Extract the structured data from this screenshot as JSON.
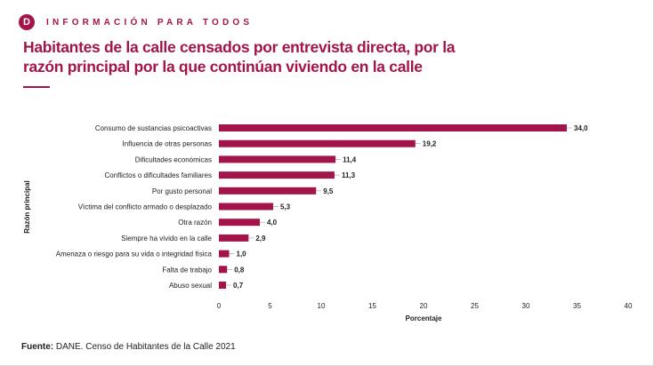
{
  "header": {
    "logo_letter": "D",
    "brand": "INFORMACIÓN PARA TODOS",
    "title": "Habitantes de la calle censados por entrevista directa, por la razón principal por la que continúan viviendo en la calle"
  },
  "footer": {
    "source_label": "Fuente:",
    "source_text": "DANE. Censo de Habitantes de la Calle 2021"
  },
  "colors": {
    "accent": "#a3154a",
    "bar": "#a3154a"
  },
  "chart_data": {
    "type": "bar",
    "orientation": "horizontal",
    "title": "",
    "xlabel": "Porcentaje",
    "ylabel": "Razón principal",
    "xlim": [
      0,
      40
    ],
    "xticks": [
      0,
      5,
      10,
      15,
      20,
      25,
      30,
      35,
      40
    ],
    "categories": [
      "Consumo de sustancias psicoactivas",
      "Influencia de otras personas",
      "Dificultades económicas",
      "Conflictos o dificultades familiares",
      "Por gusto personal",
      "Víctima del conflicto armado o desplazado",
      "Otra razón",
      "Siempre ha vivido en la calle",
      "Amenaza o riesgo para su vida o integridad física",
      "Falta de trabajo",
      "Abuso sexual"
    ],
    "values": [
      34.0,
      19.2,
      11.4,
      11.3,
      9.5,
      5.3,
      4.0,
      2.9,
      1.0,
      0.8,
      0.7
    ],
    "data_labels": [
      "34,0",
      "19,2",
      "11,4",
      "11,3",
      "9,5",
      "5,3",
      "4,0",
      "2,9",
      "1,0",
      "0,8",
      "0,7"
    ],
    "grid": false
  }
}
